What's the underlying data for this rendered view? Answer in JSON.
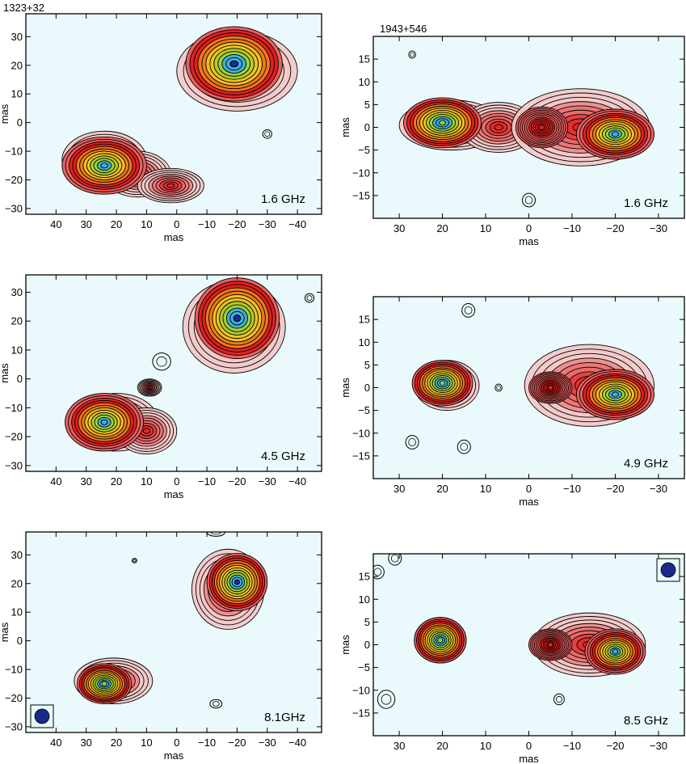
{
  "chart_data": [
    {
      "type": "contour",
      "source": "1323+32",
      "frequency_label": "1.6 GHz",
      "xlabel": "mas",
      "ylabel": "mas",
      "xlim": [
        50,
        -48
      ],
      "ylim": [
        -32,
        38
      ],
      "xticks": [
        40,
        30,
        20,
        10,
        0,
        -10,
        -20,
        -30,
        -40
      ],
      "yticks": [
        -30,
        -20,
        -10,
        0,
        10,
        20,
        30
      ],
      "xtick_labels": [
        "40",
        "30",
        "20",
        "10",
        "0",
        "−10",
        "−20",
        "−30",
        "−40"
      ],
      "ytick_labels": [
        "−30",
        "−20",
        "−10",
        "0",
        "10",
        "20",
        "30"
      ],
      "beam_shown": false,
      "components": [
        {
          "x": -19,
          "y": 20.5,
          "rx": 16,
          "ry": 13,
          "peak_color": "#1a2a9a"
        },
        {
          "x": 24,
          "y": -15,
          "rx": 14,
          "ry": 10,
          "peak_color": "#3fb0d8"
        }
      ],
      "blobs": [
        {
          "x": -20,
          "y": 18,
          "rx": 20,
          "ry": 14,
          "type": "emission"
        },
        {
          "x": 24,
          "y": -13,
          "rx": 14,
          "ry": 10,
          "type": "emission"
        },
        {
          "x": 13,
          "y": -18,
          "rx": 11,
          "ry": 8,
          "type": "emission"
        },
        {
          "x": 2,
          "y": -22,
          "rx": 11,
          "ry": 6,
          "type": "emission"
        },
        {
          "x": -30,
          "y": -4,
          "rx": 1.5,
          "ry": 1.5,
          "type": "isolated"
        }
      ]
    },
    {
      "type": "contour",
      "source": "1943+546",
      "frequency_label": "1.6 GHz",
      "xlabel": "mas",
      "ylabel": "mas",
      "xlim": [
        36,
        -36
      ],
      "ylim": [
        -20,
        20
      ],
      "xticks": [
        30,
        20,
        10,
        0,
        -10,
        -20,
        -30
      ],
      "yticks": [
        -15,
        -10,
        -5,
        0,
        5,
        10,
        15
      ],
      "xtick_labels": [
        "30",
        "20",
        "10",
        "0",
        "−10",
        "−20",
        "−30"
      ],
      "ytick_labels": [
        "−15",
        "−10",
        "−5",
        "0",
        "5",
        "10",
        "15"
      ],
      "beam_shown": false,
      "components": [
        {
          "x": 20,
          "y": 1,
          "rx": 9,
          "ry": 5.5,
          "peak_color": "#9acd32"
        },
        {
          "x": -20,
          "y": -1.5,
          "rx": 9,
          "ry": 5.5,
          "peak_color": "#3fb0d8"
        },
        {
          "x": -3,
          "y": 0,
          "rx": 6,
          "ry": 4.5,
          "peak_color": "#e02020"
        }
      ],
      "blobs": [
        {
          "x": 18,
          "y": 0.5,
          "rx": 12,
          "ry": 5.5,
          "type": "emission"
        },
        {
          "x": 7,
          "y": 0,
          "rx": 9,
          "ry": 5.5,
          "type": "emission"
        },
        {
          "x": -12,
          "y": 0,
          "rx": 16,
          "ry": 8.5,
          "type": "emission"
        },
        {
          "x": 27,
          "y": 16,
          "rx": 0.8,
          "ry": 0.8,
          "type": "isolated"
        },
        {
          "x": 0,
          "y": -16,
          "rx": 1.5,
          "ry": 1.5,
          "type": "isolated"
        }
      ]
    },
    {
      "type": "contour",
      "source": "",
      "frequency_label": "4.5 GHz",
      "xlabel": "mas",
      "ylabel": "mas",
      "xlim": [
        50,
        -48
      ],
      "ylim": [
        -32,
        36
      ],
      "xticks": [
        40,
        30,
        20,
        10,
        0,
        -10,
        -20,
        -30,
        -40
      ],
      "yticks": [
        -30,
        -20,
        -10,
        0,
        10,
        20,
        30
      ],
      "xtick_labels": [
        "40",
        "30",
        "20",
        "10",
        "0",
        "−10",
        "−20",
        "−30",
        "−40"
      ],
      "ytick_labels": [
        "−30",
        "−20",
        "−10",
        "0",
        "10",
        "20",
        "30"
      ],
      "beam_shown": false,
      "components": [
        {
          "x": -20,
          "y": 21,
          "rx": 14,
          "ry": 14,
          "peak_color": "#1a2a9a"
        },
        {
          "x": 24,
          "y": -15,
          "rx": 13,
          "ry": 10,
          "peak_color": "#3fb0d8"
        }
      ],
      "blobs": [
        {
          "x": -19,
          "y": 18,
          "rx": 17,
          "ry": 16,
          "type": "emission"
        },
        {
          "x": 20,
          "y": -15,
          "rx": 14,
          "ry": 10,
          "type": "emission"
        },
        {
          "x": 10,
          "y": -18,
          "rx": 10,
          "ry": 8,
          "type": "emission"
        },
        {
          "x": 9,
          "y": -3,
          "rx": 4,
          "ry": 3,
          "type": "emission"
        },
        {
          "x": 5,
          "y": 6,
          "rx": 3,
          "ry": 3,
          "type": "isolated"
        },
        {
          "x": -44,
          "y": 28,
          "rx": 1.5,
          "ry": 1.5,
          "type": "isolated"
        }
      ]
    },
    {
      "type": "contour",
      "source": "",
      "frequency_label": "4.9 GHz",
      "xlabel": "mas",
      "ylabel": "mas",
      "xlim": [
        36,
        -36
      ],
      "ylim": [
        -20,
        20
      ],
      "xticks": [
        30,
        20,
        10,
        0,
        -10,
        -20,
        -30
      ],
      "yticks": [
        -15,
        -10,
        -5,
        0,
        5,
        10,
        15
      ],
      "xtick_labels": [
        "30",
        "20",
        "10",
        "0",
        "−10",
        "−20",
        "−30"
      ],
      "ytick_labels": [
        "−15",
        "−10",
        "−5",
        "0",
        "5",
        "10",
        "15"
      ],
      "beam_shown": false,
      "components": [
        {
          "x": 20,
          "y": 1,
          "rx": 7,
          "ry": 5,
          "peak_color": "#9acd32"
        },
        {
          "x": -20,
          "y": -1.5,
          "rx": 9,
          "ry": 5.5,
          "peak_color": "#3fb0d8"
        },
        {
          "x": -5,
          "y": 0,
          "rx": 5,
          "ry": 3.5,
          "peak_color": "#e02020"
        }
      ],
      "blobs": [
        {
          "x": 19,
          "y": 0.5,
          "rx": 7.5,
          "ry": 5.5,
          "type": "emission"
        },
        {
          "x": -14,
          "y": 0.5,
          "rx": 15,
          "ry": 9,
          "type": "emission"
        },
        {
          "x": 14,
          "y": 17,
          "rx": 1.5,
          "ry": 1.5,
          "type": "isolated"
        },
        {
          "x": 7,
          "y": 0,
          "rx": 0.8,
          "ry": 0.8,
          "type": "isolated"
        },
        {
          "x": 27,
          "y": -12,
          "rx": 1.5,
          "ry": 1.5,
          "type": "isolated"
        },
        {
          "x": 15,
          "y": -13,
          "rx": 1.5,
          "ry": 1.5,
          "type": "isolated"
        }
      ]
    },
    {
      "type": "contour",
      "source": "",
      "frequency_label": "8.1GHz",
      "xlabel": "mas",
      "ylabel": "mas",
      "xlim": [
        50,
        -48
      ],
      "ylim": [
        -32,
        38
      ],
      "xticks": [
        40,
        30,
        20,
        10,
        0,
        -10,
        -20,
        -30,
        -40
      ],
      "yticks": [
        -30,
        -20,
        -10,
        0,
        10,
        20,
        30
      ],
      "xtick_labels": [
        "40",
        "30",
        "20",
        "10",
        "0",
        "−10",
        "−20",
        "−30",
        "−40"
      ],
      "ytick_labels": [
        "−30",
        "−20",
        "−10",
        "0",
        "10",
        "20",
        "30"
      ],
      "beam_shown": true,
      "beam_position": "bottom-left",
      "components": [
        {
          "x": -20,
          "y": 20.5,
          "rx": 10,
          "ry": 10,
          "peak_color": "#1a2a9a"
        },
        {
          "x": 24,
          "y": -15,
          "rx": 9,
          "ry": 7,
          "peak_color": "#9acd32"
        }
      ],
      "blobs": [
        {
          "x": -17,
          "y": 18,
          "rx": 12,
          "ry": 14,
          "type": "emission"
        },
        {
          "x": 21,
          "y": -14,
          "rx": 13,
          "ry": 8,
          "type": "emission"
        },
        {
          "x": 14,
          "y": 28,
          "rx": 0.8,
          "ry": 0.8,
          "type": "isolated"
        },
        {
          "x": -13,
          "y": -22,
          "rx": 2,
          "ry": 1.5,
          "type": "isolated"
        },
        {
          "x": -13,
          "y": 38,
          "rx": 3,
          "ry": 1.5,
          "type": "isolated"
        }
      ]
    },
    {
      "type": "contour",
      "source": "",
      "frequency_label": "8.5 GHz",
      "xlabel": "mas",
      "ylabel": "mas",
      "xlim": [
        36,
        -36
      ],
      "ylim": [
        -20,
        20
      ],
      "xticks": [
        30,
        20,
        10,
        0,
        -10,
        -20,
        -30
      ],
      "yticks": [
        -15,
        -10,
        -5,
        0,
        5,
        10,
        15
      ],
      "xtick_labels": [
        "30",
        "20",
        "10",
        "0",
        "−10",
        "−20",
        "−30"
      ],
      "ytick_labels": [
        "−15",
        "−10",
        "−5",
        "0",
        "5",
        "10",
        "15"
      ],
      "beam_shown": true,
      "beam_position": "top-right",
      "components": [
        {
          "x": 20.5,
          "y": 1,
          "rx": 6,
          "ry": 5,
          "peak_color": "#9acd32"
        },
        {
          "x": -20,
          "y": -1.5,
          "rx": 7,
          "ry": 5,
          "peak_color": "#3fb0d8"
        },
        {
          "x": -5,
          "y": 0,
          "rx": 5,
          "ry": 3.5,
          "peak_color": "#e02020"
        }
      ],
      "blobs": [
        {
          "x": 20.5,
          "y": 1,
          "rx": 6,
          "ry": 5,
          "type": "emission"
        },
        {
          "x": -14,
          "y": 0,
          "rx": 13,
          "ry": 7,
          "type": "emission"
        },
        {
          "x": 31,
          "y": 19,
          "rx": 1.5,
          "ry": 1.5,
          "type": "isolated"
        },
        {
          "x": 35,
          "y": 16,
          "rx": 1.5,
          "ry": 1.5,
          "type": "isolated"
        },
        {
          "x": 33,
          "y": -12,
          "rx": 2,
          "ry": 2,
          "type": "isolated"
        },
        {
          "x": -7,
          "y": -12,
          "rx": 1.2,
          "ry": 1.2,
          "type": "isolated"
        }
      ]
    }
  ],
  "colors": {
    "background": "#eafafc",
    "contour": "#000000",
    "beam_fill": "#1a2a8a",
    "emission_ramp": [
      "#ffffff",
      "#f4c8c8",
      "#e86060",
      "#e02020",
      "#f07a1a",
      "#f4c020",
      "#a8d030",
      "#3fb0d8",
      "#1a2a9a"
    ]
  }
}
